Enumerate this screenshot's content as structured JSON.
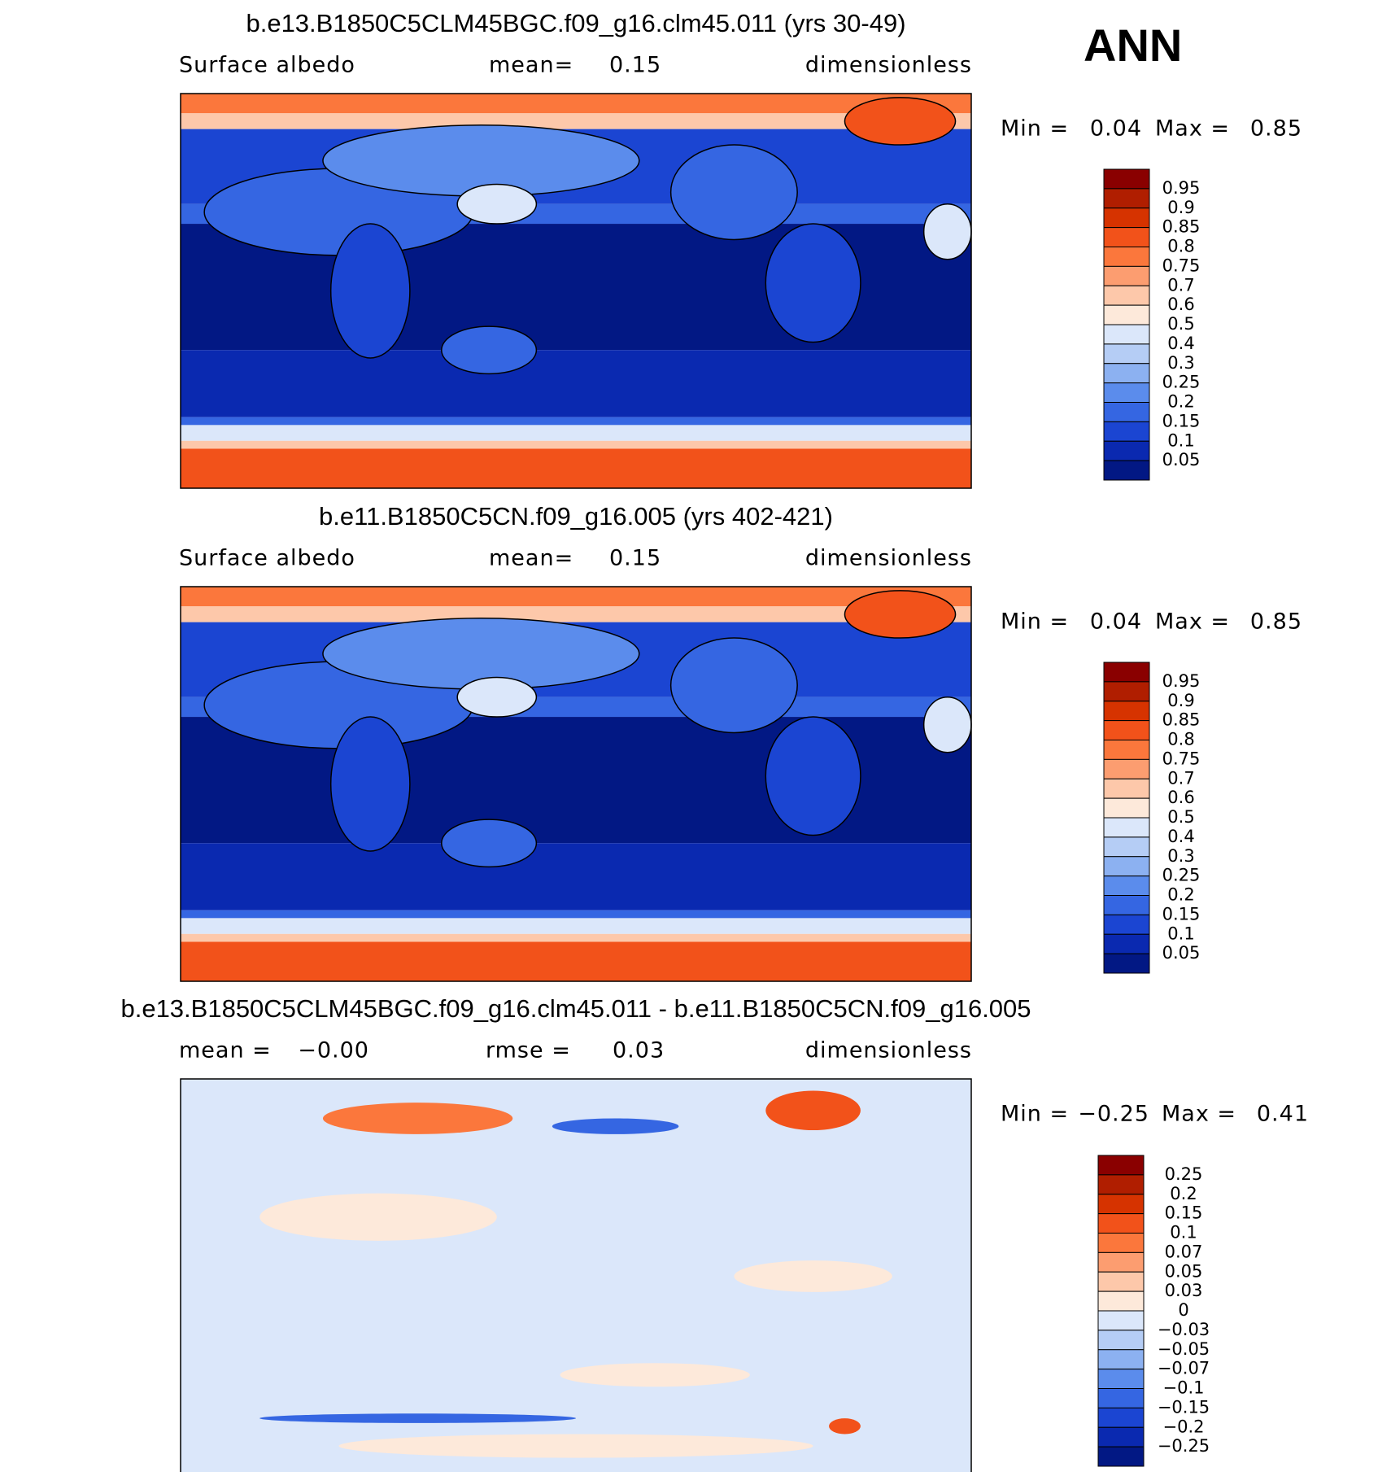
{
  "season": "ANN",
  "panels": [
    {
      "title": "b.e13.B1850C5CLM45BGC.f09_g16.clm45.011 (yrs 30-49)",
      "subtitle": [
        "Surface albedo",
        "mean=",
        "0.15",
        "dimensionless"
      ],
      "min_label": "Min =",
      "min": "0.04",
      "max_label": "Max =",
      "max": "0.85",
      "colorbar": {
        "labels": [
          "0.95",
          "0.9",
          "0.85",
          "0.8",
          "0.75",
          "0.7",
          "0.6",
          "0.5",
          "0.4",
          "0.3",
          "0.25",
          "0.2",
          "0.15",
          "0.1",
          "0.05"
        ],
        "colors": [
          "#8a0000",
          "#b01e00",
          "#d63300",
          "#f2521a",
          "#fb773c",
          "#fc9d70",
          "#fdc8aa",
          "#fde9da",
          "#dbe7fa",
          "#b5cdf5",
          "#8cb1f1",
          "#5b8cec",
          "#3566e2",
          "#1b45d2",
          "#0a29b0",
          "#021884"
        ]
      }
    },
    {
      "title": "b.e11.B1850C5CN.f09_g16.005 (yrs 402-421)",
      "subtitle": [
        "Surface albedo",
        "mean=",
        "0.15",
        "dimensionless"
      ],
      "min_label": "Min =",
      "min": "0.04",
      "max_label": "Max =",
      "max": "0.85",
      "colorbar": {
        "labels": [
          "0.95",
          "0.9",
          "0.85",
          "0.8",
          "0.75",
          "0.7",
          "0.6",
          "0.5",
          "0.4",
          "0.3",
          "0.25",
          "0.2",
          "0.15",
          "0.1",
          "0.05"
        ],
        "colors": [
          "#8a0000",
          "#b01e00",
          "#d63300",
          "#f2521a",
          "#fb773c",
          "#fc9d70",
          "#fdc8aa",
          "#fde9da",
          "#dbe7fa",
          "#b5cdf5",
          "#8cb1f1",
          "#5b8cec",
          "#3566e2",
          "#1b45d2",
          "#0a29b0",
          "#021884"
        ]
      }
    },
    {
      "title": "b.e13.B1850C5CLM45BGC.f09_g16.clm45.011 - b.e11.B1850C5CN.f09_g16.005",
      "subtitle": [
        "mean =",
        "−0.00",
        "rmse =",
        "0.03",
        "dimensionless"
      ],
      "min_label": "Min =",
      "min": "−0.25",
      "max_label": "Max =",
      "max": "0.41",
      "colorbar": {
        "labels": [
          "0.25",
          "0.2",
          "0.15",
          "0.1",
          "0.07",
          "0.05",
          "0.03",
          "0",
          "−0.03",
          "−0.05",
          "−0.07",
          "−0.1",
          "−0.15",
          "−0.2",
          "−0.25"
        ],
        "colors": [
          "#8a0000",
          "#b01e00",
          "#d63300",
          "#f2521a",
          "#fb773c",
          "#fc9d70",
          "#fdc8aa",
          "#fde9da",
          "#dbe7fa",
          "#b5cdf5",
          "#8cb1f1",
          "#5b8cec",
          "#3566e2",
          "#1b45d2",
          "#0a29b0",
          "#021884"
        ]
      }
    }
  ]
}
